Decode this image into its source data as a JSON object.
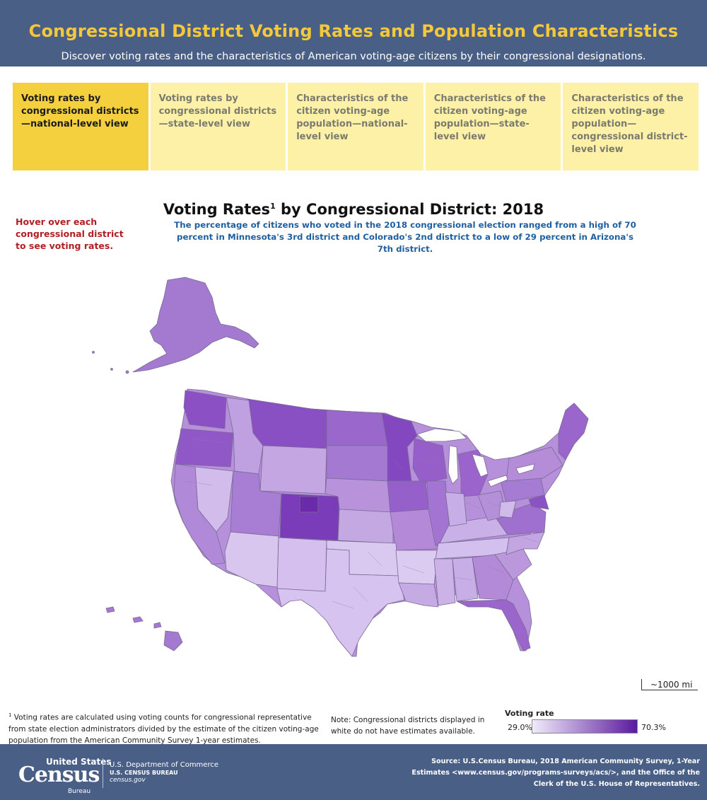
{
  "header": {
    "title": "Congressional District Voting Rates and Population Characteristics",
    "subtitle": "Discover voting rates and the characteristics of American voting-age citizens by their congressional designations."
  },
  "tabs": [
    {
      "label": "Voting rates by congressional districts—national-level view",
      "active": true
    },
    {
      "label": "Voting rates by congressional districts—state-level view",
      "active": false
    },
    {
      "label": "Characteristics of the citizen voting-age population—national-level view",
      "active": false
    },
    {
      "label": "Characteristics of the citizen voting-age population—state-level view",
      "active": false
    },
    {
      "label": "Characteristics of the citizen voting-age population—congressional district-level view",
      "active": false
    }
  ],
  "instruction": "Hover over each congressional district to see voting rates.",
  "map": {
    "title_pre": "Voting Rates",
    "title_sup": "1",
    "title_post": " by Congressional District: 2018",
    "subtitle": "The percentage of citizens who voted in the 2018 congressional election ranged from a high of 70 percent in Minnesota's 3rd district and Colorado's 2nd district to a low of 29 percent in Arizona's 7th district.",
    "scale_label": "~1000 mi"
  },
  "footnote": {
    "marker": "1",
    "text": " Voting rates are calculated using voting counts for congressional representative from state election administrators divided by the estimate of the citizen voting-age population from the American Community Survey 1-year estimates."
  },
  "note": "Note: Congressional districts displayed in white do not have estimates available.",
  "legend": {
    "title": "Voting rate",
    "min": "29.0%",
    "max": "70.3%",
    "color_min": "#f1ebfb",
    "color_max": "#5a1a9e"
  },
  "footer": {
    "logo_top": "United States",
    "logo_main": "Census",
    "logo_bottom": "Bureau",
    "dept_line1": "U.S. Department of Commerce",
    "dept_line2": "U.S. CENSUS BUREAU",
    "dept_line3": "census.gov",
    "source": "Source:  U.S.Census Bureau, 2018 American Community Survey, 1-Year Estimates <www.census.gov/programs-surveys/acs/>, and the Office of the Clerk of the U.S. House of Representatives."
  }
}
